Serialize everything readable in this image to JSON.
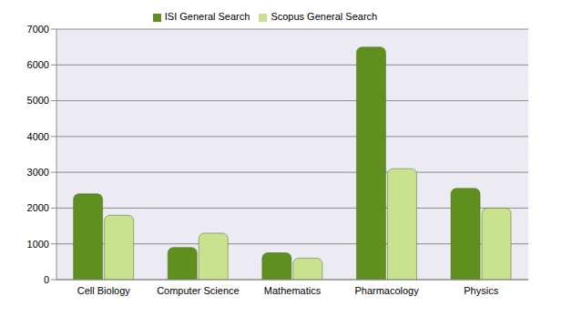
{
  "chart_data": {
    "type": "bar",
    "categories": [
      "Cell Biology",
      "Computer Science",
      "Mathematics",
      "Pharmacology",
      "Physics"
    ],
    "series": [
      {
        "name": "ISI General Search",
        "color": "#5f8f1f",
        "values": [
          2400,
          900,
          750,
          6500,
          2550
        ]
      },
      {
        "name": "Scopus General Search",
        "color": "#c8e28d",
        "values": [
          1800,
          1300,
          600,
          3100,
          2000
        ]
      }
    ],
    "ylim": [
      0,
      7000
    ],
    "yticks": [
      0,
      1000,
      2000,
      3000,
      4000,
      5000,
      6000,
      7000
    ],
    "grid": true,
    "legend": "top"
  }
}
